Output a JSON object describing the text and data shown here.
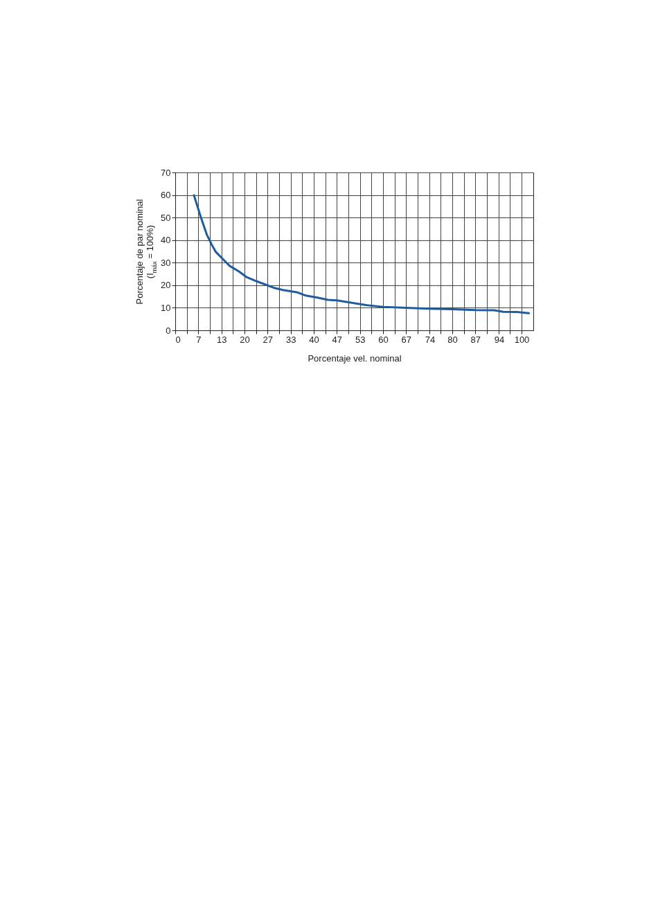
{
  "chart_data": {
    "type": "line",
    "xlabel": "Porcentaje vel. nominal",
    "ylabel": "Porcentaje de par nominal\n(I$_{máx}$ = 100%)",
    "x": [
      5.4,
      7.4,
      9.1,
      10.4,
      11.7,
      13.7,
      15.7,
      18.4,
      20.7,
      23.1,
      25.7,
      28.4,
      31.1,
      35.1,
      37.7,
      41.1,
      44.1,
      46.7,
      50.7,
      55.4,
      60.1,
      66.7,
      73.4,
      80.1,
      86.7,
      92.1,
      94.7,
      98.7,
      102.1
    ],
    "series": [
      {
        "color": "#1f5c9e",
        "values": [
          59.9,
          50.1,
          42.5,
          38.4,
          34.8,
          31.7,
          28.6,
          26.1,
          23.5,
          22.0,
          20.5,
          18.9,
          17.9,
          16.9,
          15.4,
          14.5,
          13.5,
          13.3,
          12.3,
          11.1,
          10.4,
          10.0,
          9.6,
          9.4,
          9.0,
          8.9,
          8.2,
          8.1,
          7.6
        ]
      }
    ],
    "xlim": [
      0,
      103.4
    ],
    "ylim": [
      0,
      70
    ],
    "xticks": [
      0,
      {
        "value": 3.3333,
        "label": null
      },
      {
        "value": 6.6667,
        "label": "7"
      },
      {
        "value": 10,
        "label": null
      },
      {
        "value": 13.3333,
        "label": "13"
      },
      {
        "value": 16.6667,
        "label": null
      },
      20,
      {
        "value": 23.3333,
        "label": null
      },
      {
        "value": 26.6667,
        "label": "27"
      },
      {
        "value": 30,
        "label": null
      },
      {
        "value": 33.3333,
        "label": "33"
      },
      {
        "value": 36.6667,
        "label": null
      },
      40,
      {
        "value": 43.3333,
        "label": null
      },
      {
        "value": 46.6667,
        "label": "47"
      },
      {
        "value": 50,
        "label": null
      },
      {
        "value": 53.3333,
        "label": "53"
      },
      {
        "value": 56.6667,
        "label": null
      },
      60,
      {
        "value": 63.3333,
        "label": null
      },
      {
        "value": 66.6667,
        "label": "67"
      },
      {
        "value": 70,
        "label": null
      },
      {
        "value": 73.5,
        "label": "74"
      },
      {
        "value": 76.6667,
        "label": null
      },
      80,
      {
        "value": 83.3333,
        "label": null
      },
      {
        "value": 86.6667,
        "label": "87"
      },
      {
        "value": 90,
        "label": null
      },
      {
        "value": 93.5,
        "label": "94"
      },
      {
        "value": 96.6667,
        "label": null
      },
      100
    ],
    "yticks": [
      0,
      10,
      20,
      30,
      40,
      50,
      60,
      70
    ],
    "grid": true,
    "line_style": "solid"
  }
}
